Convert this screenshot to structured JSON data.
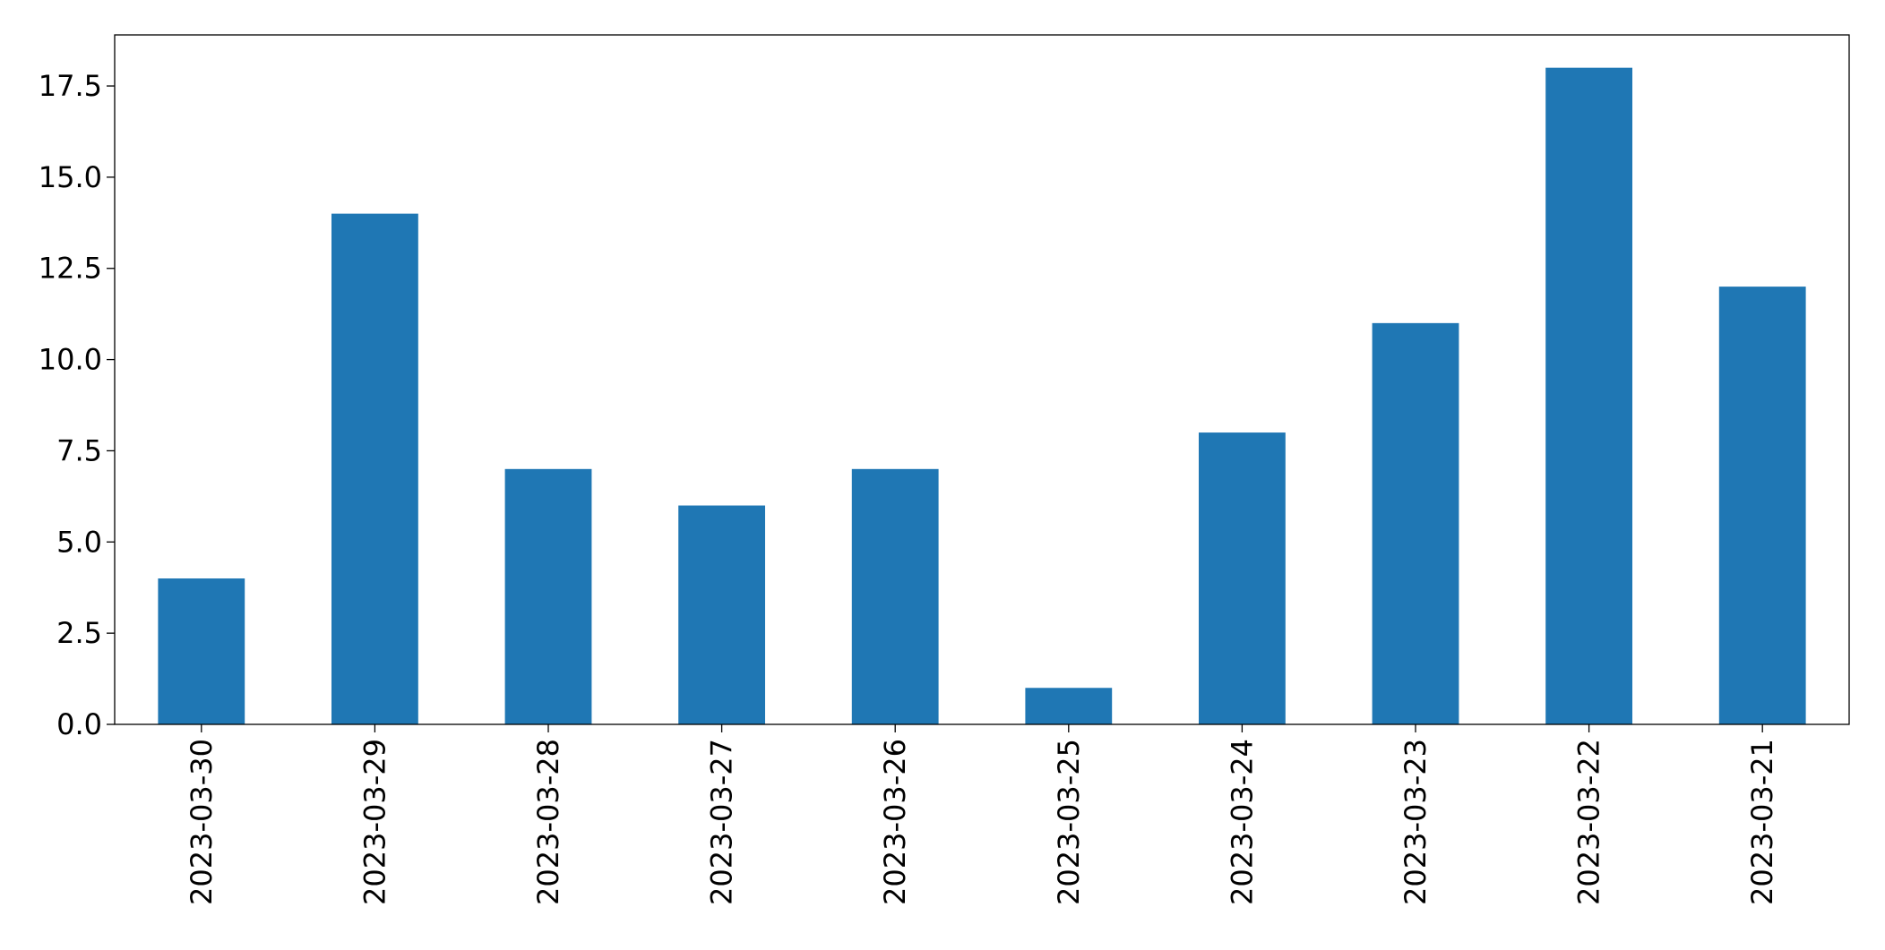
{
  "chart_data": {
    "type": "bar",
    "categories": [
      "2023-03-30",
      "2023-03-29",
      "2023-03-28",
      "2023-03-27",
      "2023-03-26",
      "2023-03-25",
      "2023-03-24",
      "2023-03-23",
      "2023-03-22",
      "2023-03-21"
    ],
    "values": [
      4,
      14,
      7,
      6,
      7,
      1,
      8,
      11,
      18,
      12
    ],
    "color": "#1f77b4",
    "ylim": [
      0,
      18.9
    ],
    "yticks": [
      {
        "value": 0,
        "label": "0.0"
      },
      2.5,
      {
        "value": 5,
        "label": "5.0"
      },
      7.5,
      {
        "value": 10,
        "label": "10.0"
      },
      12.5,
      {
        "value": 15,
        "label": "15.0"
      },
      17.5
    ],
    "grid": false
  }
}
